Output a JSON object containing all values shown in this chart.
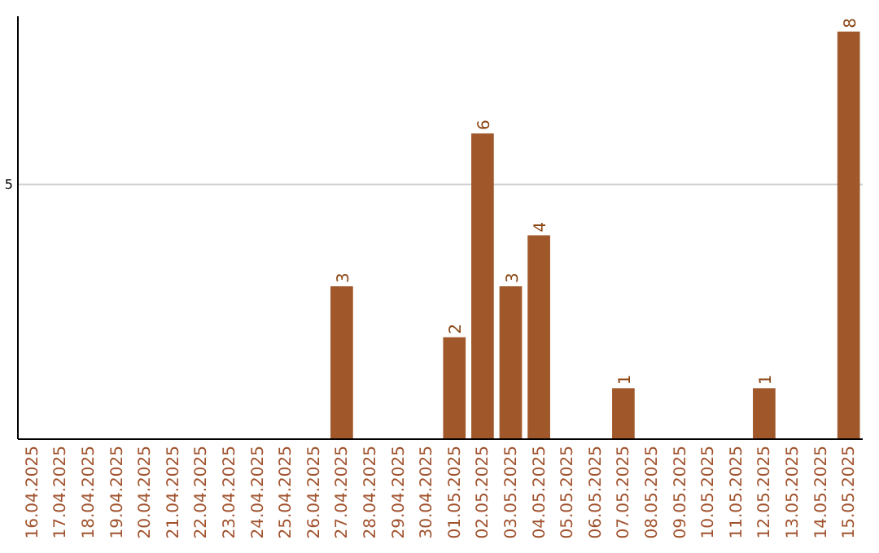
{
  "chart_data": {
    "type": "bar",
    "categories": [
      "16.04.2025",
      "17.04.2025",
      "18.04.2025",
      "19.04.2025",
      "20.04.2025",
      "21.04.2025",
      "22.04.2025",
      "23.04.2025",
      "24.04.2025",
      "25.04.2025",
      "26.04.2025",
      "27.04.2025",
      "28.04.2025",
      "29.04.2025",
      "30.04.2025",
      "01.05.2025",
      "02.05.2025",
      "03.05.2025",
      "04.05.2025",
      "05.05.2025",
      "06.05.2025",
      "07.05.2025",
      "08.05.2025",
      "09.05.2025",
      "10.05.2025",
      "11.05.2025",
      "12.05.2025",
      "13.05.2025",
      "14.05.2025",
      "15.05.2025"
    ],
    "values": [
      0,
      0,
      0,
      0,
      0,
      0,
      0,
      0,
      0,
      0,
      0,
      3,
      0,
      0,
      0,
      2,
      6,
      3,
      4,
      0,
      0,
      1,
      0,
      0,
      0,
      0,
      1,
      0,
      0,
      8
    ],
    "value_labels": [
      null,
      null,
      null,
      null,
      null,
      null,
      null,
      null,
      null,
      null,
      null,
      "3",
      null,
      null,
      null,
      "2",
      "6",
      "3",
      "4",
      null,
      null,
      "1",
      null,
      null,
      null,
      null,
      "1",
      null,
      null,
      "8"
    ],
    "color": "#a0582b",
    "ylim": [
      0,
      8.3
    ],
    "yticks": [
      5
    ],
    "grid": "y"
  }
}
